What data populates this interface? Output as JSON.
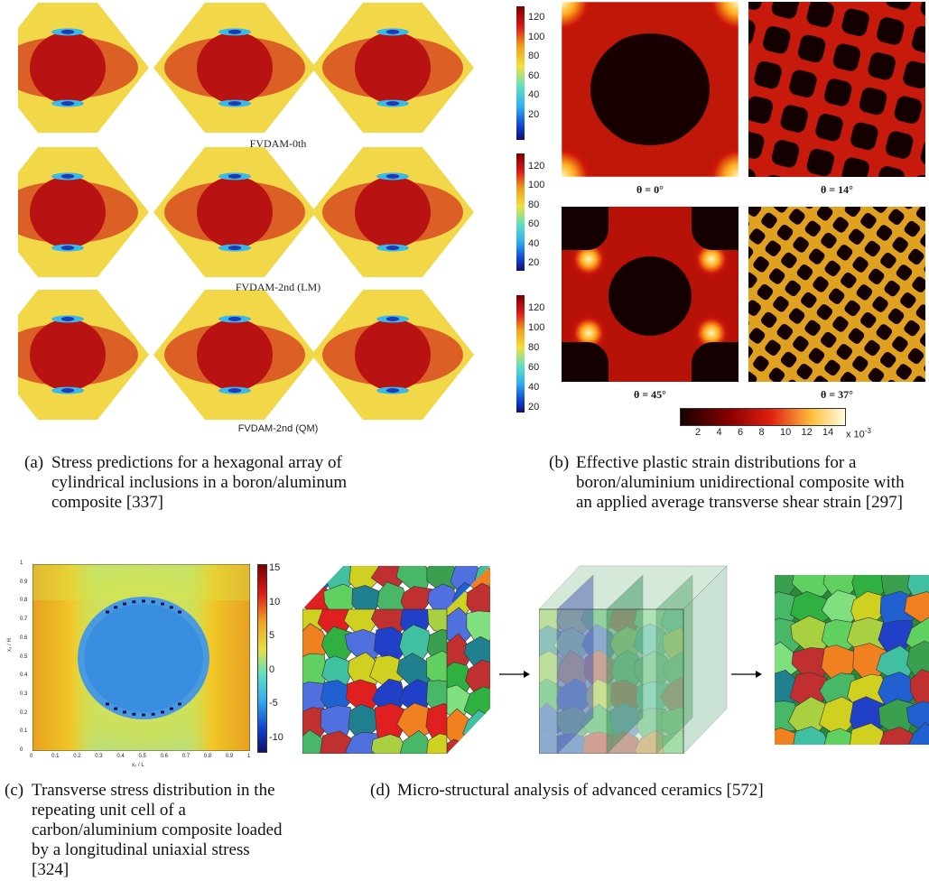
{
  "panel_a": {
    "row_labels": [
      "FVDAM-0th",
      "FVDAM-2nd (LM)",
      "FVDAM-2nd (QM)"
    ],
    "colorbar_ticks": [
      "120",
      "100",
      "80",
      "60",
      "40",
      "20"
    ],
    "caption_tag": "(a)",
    "caption_text": "Stress predictions for a hexagonal array of cylindrical inclusions in a boron/aluminum composite [337]"
  },
  "panel_b": {
    "angle_labels": [
      "θ = 0°",
      "θ = 14°",
      "θ = 45°",
      "θ = 37°"
    ],
    "colorbar_ticks": [
      "2",
      "4",
      "6",
      "8",
      "10",
      "12",
      "14"
    ],
    "colorbar_multiplier": "x 10",
    "colorbar_exponent": "-3",
    "caption_tag": "(b)",
    "caption_text": "Effective plastic strain distributions for a boron/aluminium unidirectional composite with an applied average transverse shear strain [297]"
  },
  "panel_c": {
    "x_ticks": [
      "0",
      "0.1",
      "0.2",
      "0.3",
      "0.4",
      "0.5",
      "0.6",
      "0.7",
      "0.8",
      "0.9",
      "1"
    ],
    "y_ticks": [
      "1",
      "0.9",
      "0.8",
      "0.7",
      "0.6",
      "0.5",
      "0.4",
      "0.3",
      "0.2",
      "0.1",
      "0"
    ],
    "x_label": "x₂ / L",
    "y_label": "x₃ / H",
    "colorbar_ticks": [
      "15",
      "10",
      "5",
      "0",
      "-5",
      "-10"
    ],
    "caption_tag": "(c)",
    "caption_text": "Transverse stress distribution in the repeating unit cell of a carbon/aluminium composite loaded by a longitudinal uniaxial stress [324]"
  },
  "panel_d": {
    "caption_tag": "(d)",
    "caption_text": "Micro-structural analysis of advanced ceramics [572]"
  },
  "colors": {
    "jet_red": "#b01010",
    "jet_yellow": "#f0d84a",
    "jet_cyan": "#37c8e8",
    "jet_blue": "#1a2fa8",
    "hot_dark": "#1a0000",
    "hot_red": "#c0140a",
    "hot_yellow": "#ffe060"
  }
}
